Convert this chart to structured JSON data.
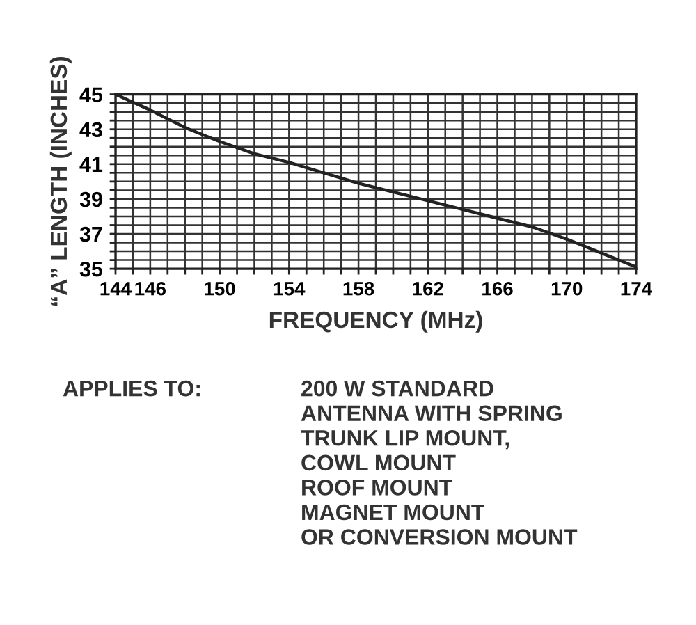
{
  "chart_data": {
    "type": "line",
    "xlabel": "FREQUENCY (MHz)",
    "ylabel": "“A” LENGTH (INCHES)",
    "x": [
      144,
      146,
      148,
      150,
      152,
      154,
      156,
      158,
      160,
      162,
      164,
      166,
      168,
      170,
      172,
      174
    ],
    "series": [
      {
        "color": "#222222",
        "values": [
          45,
          44.1,
          43.1,
          42.3,
          41.6,
          41.1,
          40.5,
          39.9,
          39.4,
          38.9,
          38.4,
          37.9,
          37.4,
          36.7,
          35.9,
          35.1
        ]
      }
    ],
    "xlim": [
      144,
      174
    ],
    "ylim": [
      35,
      45
    ],
    "xticks": [
      144,
      {
        "value": 145,
        "label": null
      },
      146,
      {
        "value": 147,
        "label": null
      },
      {
        "value": 148,
        "label": null
      },
      {
        "value": 149,
        "label": null
      },
      150,
      {
        "value": 151,
        "label": null
      },
      {
        "value": 152,
        "label": null
      },
      {
        "value": 153,
        "label": null
      },
      154,
      {
        "value": 155,
        "label": null
      },
      {
        "value": 156,
        "label": null
      },
      {
        "value": 157,
        "label": null
      },
      158,
      {
        "value": 159,
        "label": null
      },
      {
        "value": 160,
        "label": null
      },
      {
        "value": 161,
        "label": null
      },
      162,
      {
        "value": 163,
        "label": null
      },
      {
        "value": 164,
        "label": null
      },
      {
        "value": 165,
        "label": null
      },
      166,
      {
        "value": 167,
        "label": null
      },
      {
        "value": 168,
        "label": null
      },
      {
        "value": 169,
        "label": null
      },
      170,
      {
        "value": 171,
        "label": null
      },
      {
        "value": 172,
        "label": null
      },
      {
        "value": 173,
        "label": null
      },
      174
    ],
    "yticks": [
      35,
      {
        "value": 35.5,
        "label": null
      },
      {
        "value": 36,
        "label": null
      },
      {
        "value": 36.5,
        "label": null
      },
      37,
      {
        "value": 37.5,
        "label": null
      },
      {
        "value": 38,
        "label": null
      },
      {
        "value": 38.5,
        "label": null
      },
      39,
      {
        "value": 39.5,
        "label": null
      },
      {
        "value": 40,
        "label": null
      },
      {
        "value": 40.5,
        "label": null
      },
      41,
      {
        "value": 41.5,
        "label": null
      },
      {
        "value": 42,
        "label": null
      },
      {
        "value": 42.5,
        "label": null
      },
      43,
      {
        "value": 43.5,
        "label": null
      },
      {
        "value": 44,
        "label": null
      },
      {
        "value": 44.5,
        "label": null
      },
      45
    ],
    "grid": true,
    "marker": "none",
    "line_style": "solid",
    "annotations": [
      "APPLIES TO:",
      "200 W STANDARD\nANTENNA WITH SPRING\nTRUNK LIP MOUNT,\nCOWL MOUNT\nROOF MOUNT\nMAGNET MOUNT\nOR CONVERSION MOUNT"
    ]
  }
}
